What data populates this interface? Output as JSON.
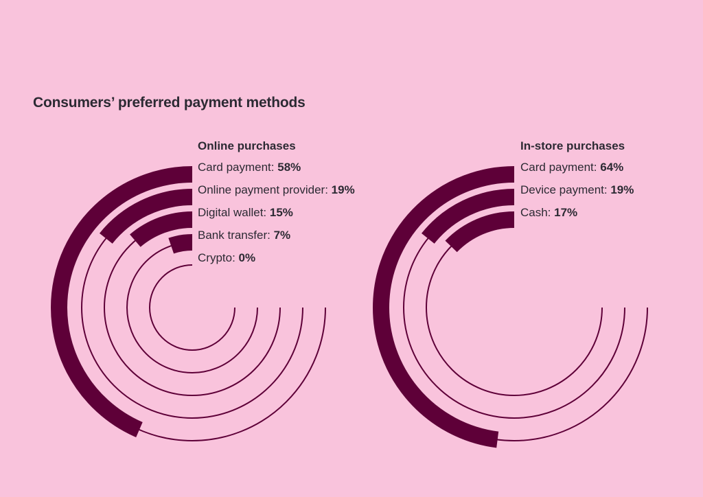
{
  "title": "Consumers’ preferred payment methods",
  "colors": {
    "background": "#f9c3dc",
    "bar": "#5e0038",
    "track": "#5e0038",
    "text": "#2c2a33"
  },
  "chart_data": [
    {
      "type": "radial-bar",
      "title": "Online purchases",
      "unit": "%",
      "categories": [
        "Card payment",
        "Online payment provider",
        "Digital wallet",
        "Bank transfer",
        "Crypto"
      ],
      "values": [
        58,
        19,
        15,
        7,
        0
      ]
    },
    {
      "type": "radial-bar",
      "title": "In-store purchases",
      "unit": "%",
      "categories": [
        "Card payment",
        "Device payment",
        "Cash"
      ],
      "values": [
        64,
        19,
        17
      ]
    }
  ]
}
